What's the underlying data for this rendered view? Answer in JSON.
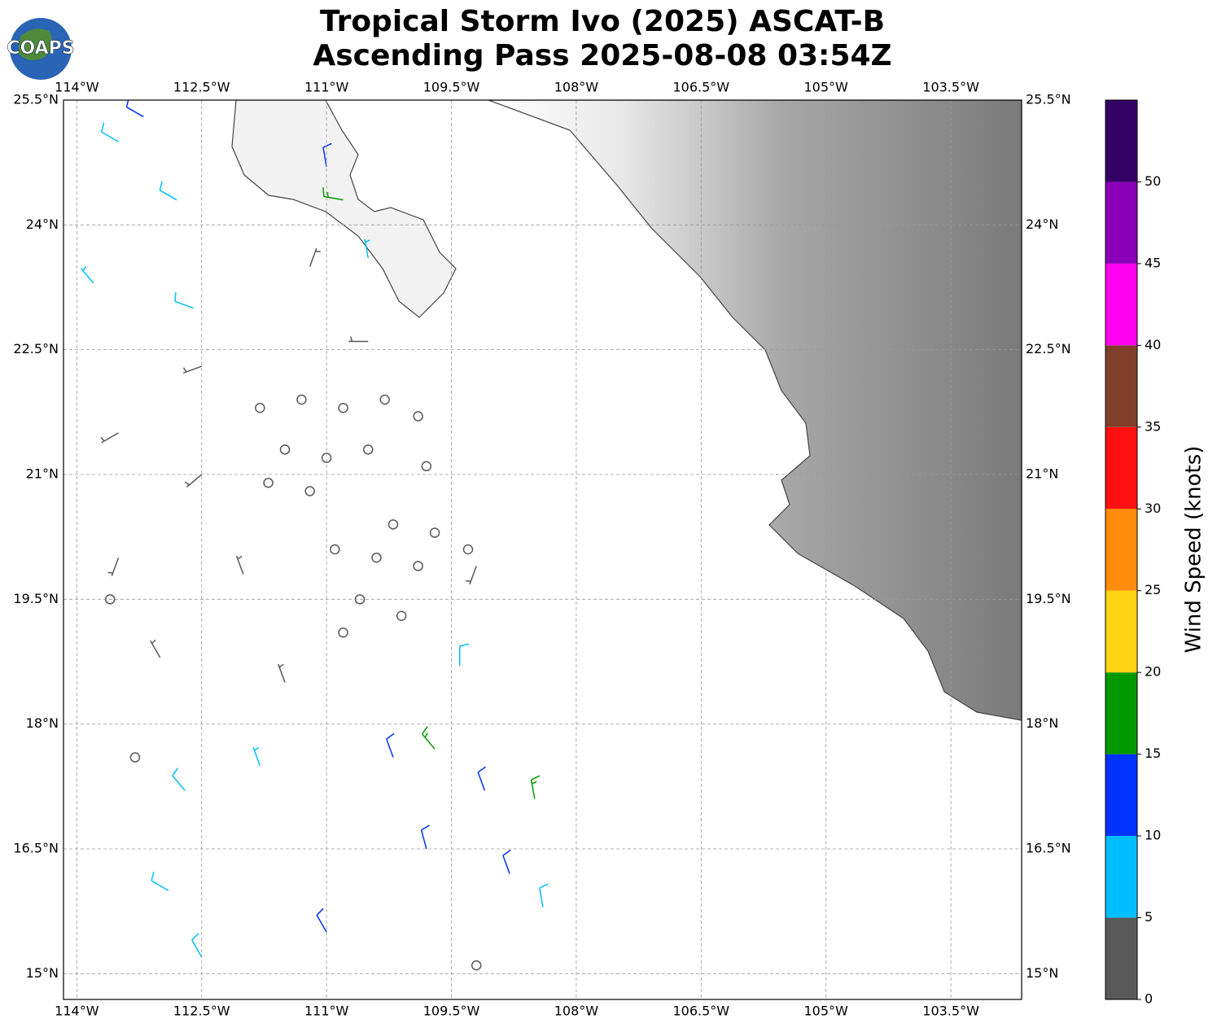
{
  "header": {
    "title_line1": "Tropical Storm Ivo (2025) ASCAT-B",
    "title_line2": "Ascending Pass 2025-08-08 03:54Z",
    "logo": "COAPS"
  },
  "map": {
    "extent": {
      "lon": [
        -114.16,
        -102.65
      ],
      "lat": [
        14.69,
        25.5
      ]
    },
    "lon_ticks": [
      {
        "value": -114,
        "label": "114°W"
      },
      {
        "value": -112.5,
        "label": "112.5°W"
      },
      {
        "value": -111,
        "label": "111°W"
      },
      {
        "value": -109.5,
        "label": "109.5°W"
      },
      {
        "value": -108,
        "label": "108°W"
      },
      {
        "value": -106.5,
        "label": "106.5°W"
      },
      {
        "value": -105,
        "label": "105°W"
      },
      {
        "value": -103.5,
        "label": "103.5°W"
      }
    ],
    "lat_ticks": [
      {
        "value": 15,
        "label": "15°N"
      },
      {
        "value": 16.5,
        "label": "16.5°N"
      },
      {
        "value": 18,
        "label": "18°N"
      },
      {
        "value": 19.5,
        "label": "19.5°N"
      },
      {
        "value": 21,
        "label": "21°N"
      },
      {
        "value": 22.5,
        "label": "22.5°N"
      },
      {
        "value": 24,
        "label": "24°N"
      },
      {
        "value": 25.5,
        "label": "25.5°N"
      }
    ]
  },
  "colorbar": {
    "label": "Wind Speed (knots)",
    "bounds": [
      0,
      5,
      10,
      15,
      20,
      25,
      30,
      35,
      40,
      45,
      50,
      55
    ],
    "colors": [
      "#595959",
      "#00bfff",
      "#0033ff",
      "#009900",
      "#ffd414",
      "#ff8c0a",
      "#ff1010",
      "#80402a",
      "#ff00f0",
      "#8a00b8",
      "#330066"
    ],
    "ticks": [
      0,
      5,
      10,
      15,
      20,
      25,
      30,
      35,
      40,
      45,
      50
    ]
  },
  "wind": {
    "barbs": [
      [
        -111.8,
        21.8,
        1,
        0
      ],
      [
        -111.3,
        21.9,
        1,
        0
      ],
      [
        -110.8,
        21.8,
        1,
        0
      ],
      [
        -110.3,
        21.9,
        1,
        0
      ],
      [
        -109.9,
        21.7,
        1,
        0
      ],
      [
        -111.5,
        21.3,
        1,
        0
      ],
      [
        -111.0,
        21.2,
        1,
        0
      ],
      [
        -110.5,
        21.3,
        1,
        0
      ],
      [
        -109.8,
        21.1,
        1,
        0
      ],
      [
        -111.7,
        20.9,
        1,
        0
      ],
      [
        -111.2,
        20.8,
        1,
        0
      ],
      [
        -110.2,
        20.4,
        1,
        0
      ],
      [
        -109.7,
        20.3,
        1,
        0
      ],
      [
        -109.3,
        20.1,
        1,
        0
      ],
      [
        -110.9,
        20.1,
        1,
        0
      ],
      [
        -110.4,
        20.0,
        1,
        0
      ],
      [
        -109.9,
        19.9,
        1,
        0
      ],
      [
        -110.6,
        19.5,
        1,
        0
      ],
      [
        -110.1,
        19.3,
        1,
        0
      ],
      [
        -110.8,
        19.1,
        1,
        0
      ],
      [
        -113.6,
        19.5,
        1,
        0
      ],
      [
        -113.3,
        17.6,
        1,
        0
      ],
      [
        -109.2,
        15.1,
        1,
        0
      ],
      [
        -112.5,
        22.3,
        4,
        250
      ],
      [
        -113.5,
        21.5,
        4,
        240
      ],
      [
        -112.5,
        21.0,
        4,
        230
      ],
      [
        -113.5,
        20.0,
        3,
        200
      ],
      [
        -112.0,
        19.8,
        4,
        340
      ],
      [
        -113.0,
        18.8,
        4,
        330
      ],
      [
        -111.5,
        18.5,
        4,
        340
      ],
      [
        -110.5,
        22.6,
        4,
        270
      ],
      [
        -111.2,
        23.5,
        3,
        20
      ],
      [
        -109.2,
        19.9,
        4,
        200
      ],
      [
        -113.5,
        25.0,
        8,
        300
      ],
      [
        -112.8,
        24.3,
        8,
        300
      ],
      [
        -113.8,
        23.3,
        7,
        320
      ],
      [
        -112.6,
        23.0,
        8,
        290
      ],
      [
        -110.5,
        23.6,
        7,
        350
      ],
      [
        -112.7,
        17.2,
        8,
        320
      ],
      [
        -112.9,
        16.0,
        8,
        300
      ],
      [
        -112.5,
        15.2,
        8,
        330
      ],
      [
        -111.8,
        17.5,
        7,
        340
      ],
      [
        -109.4,
        18.7,
        9,
        0
      ],
      [
        -108.4,
        15.8,
        8,
        350
      ],
      [
        -113.2,
        25.3,
        12,
        300
      ],
      [
        -111.0,
        24.7,
        12,
        350
      ],
      [
        -110.2,
        17.6,
        12,
        340
      ],
      [
        -109.8,
        16.5,
        12,
        345
      ],
      [
        -109.1,
        17.2,
        12,
        340
      ],
      [
        -111.0,
        15.5,
        12,
        330
      ],
      [
        -108.8,
        16.2,
        11,
        340
      ],
      [
        -109.7,
        17.7,
        16,
        320
      ],
      [
        -108.5,
        17.1,
        17,
        350
      ],
      [
        -110.8,
        24.3,
        16,
        280
      ]
    ]
  }
}
